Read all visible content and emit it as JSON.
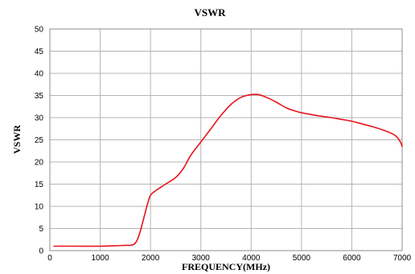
{
  "chart_data": {
    "type": "line",
    "title": "VSWR",
    "xlabel": "FREQUENCY(MHz)",
    "ylabel": "VSWR",
    "xlim": [
      0,
      7000
    ],
    "ylim": [
      0,
      50
    ],
    "x_ticks": [
      "0",
      "1000",
      "2000",
      "3000",
      "4000",
      "5000",
      "6000",
      "7000"
    ],
    "y_ticks": [
      "0",
      "5",
      "10",
      "15",
      "20",
      "25",
      "30",
      "35",
      "40",
      "45",
      "50"
    ],
    "grid": true,
    "legend": "none",
    "series": [
      {
        "color": "#e8141b",
        "points": [
          [
            80,
            1.0
          ],
          [
            500,
            1.0
          ],
          [
            1000,
            1.0
          ],
          [
            1300,
            1.1
          ],
          [
            1500,
            1.2
          ],
          [
            1600,
            1.2
          ],
          [
            1680,
            1.5
          ],
          [
            1740,
            2.5
          ],
          [
            1800,
            4.5
          ],
          [
            1870,
            7.5
          ],
          [
            1940,
            10.5
          ],
          [
            2000,
            12.5
          ],
          [
            2100,
            13.5
          ],
          [
            2300,
            15.0
          ],
          [
            2500,
            16.5
          ],
          [
            2650,
            18.5
          ],
          [
            2800,
            21.5
          ],
          [
            3000,
            24.5
          ],
          [
            3200,
            27.5
          ],
          [
            3400,
            30.5
          ],
          [
            3600,
            33.0
          ],
          [
            3800,
            34.6
          ],
          [
            4000,
            35.2
          ],
          [
            4150,
            35.2
          ],
          [
            4300,
            34.6
          ],
          [
            4500,
            33.5
          ],
          [
            4700,
            32.2
          ],
          [
            4900,
            31.4
          ],
          [
            5000,
            31.1
          ],
          [
            5200,
            30.7
          ],
          [
            5400,
            30.3
          ],
          [
            5600,
            30.0
          ],
          [
            5800,
            29.6
          ],
          [
            6000,
            29.2
          ],
          [
            6200,
            28.6
          ],
          [
            6400,
            28.0
          ],
          [
            6600,
            27.3
          ],
          [
            6800,
            26.4
          ],
          [
            6900,
            25.6
          ],
          [
            6970,
            24.4
          ],
          [
            7000,
            23.5
          ]
        ]
      }
    ]
  }
}
